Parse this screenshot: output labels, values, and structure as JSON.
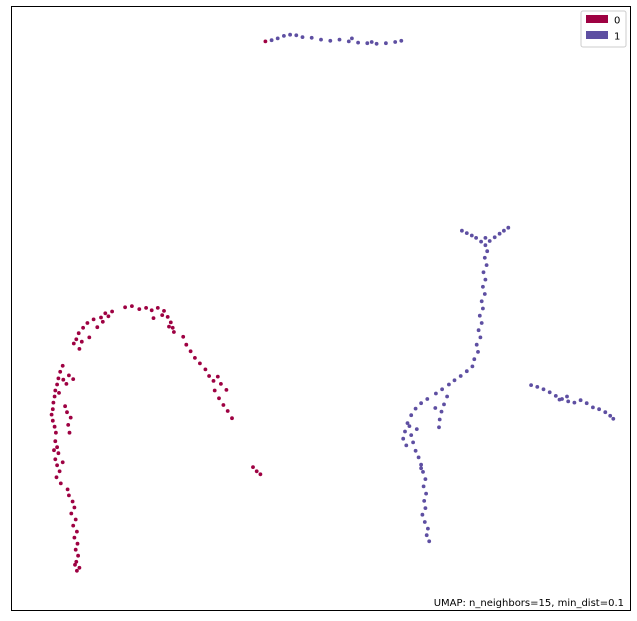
{
  "chart_data": {
    "type": "scatter",
    "title": "",
    "xlabel": "",
    "ylabel": "",
    "grid": false,
    "axes_ticks": false,
    "xlim": [
      0,
      100
    ],
    "ylim": [
      0,
      100
    ],
    "legend_position": "top-right",
    "annotation": "UMAP: n_neighbors=15, min_dist=0.1",
    "series": [
      {
        "name": "0",
        "color": "#9e0142",
        "points": [
          [
            41.0,
            94.3
          ],
          [
            18.3,
            50.2
          ],
          [
            19.4,
            50.4
          ],
          [
            20.6,
            49.9
          ],
          [
            21.7,
            50.1
          ],
          [
            22.6,
            49.7
          ],
          [
            23.6,
            50.1
          ],
          [
            24.6,
            49.6
          ],
          [
            25.2,
            48.6
          ],
          [
            24.3,
            48.9
          ],
          [
            22.9,
            48.4
          ],
          [
            25.7,
            47.7
          ],
          [
            26.0,
            46.8
          ],
          [
            25.4,
            47.0
          ],
          [
            26.2,
            46.1
          ],
          [
            16.2,
            49.5
          ],
          [
            15.1,
            49.2
          ],
          [
            14.4,
            48.5
          ],
          [
            13.2,
            48.2
          ],
          [
            12.2,
            47.6
          ],
          [
            11.5,
            46.8
          ],
          [
            10.8,
            45.9
          ],
          [
            10.4,
            44.9
          ],
          [
            10.0,
            44.2
          ],
          [
            11.3,
            44.5
          ],
          [
            12.5,
            45.2
          ],
          [
            10.9,
            43.3
          ],
          [
            13.8,
            46.9
          ],
          [
            14.7,
            47.8
          ],
          [
            15.6,
            48.7
          ],
          [
            8.2,
            40.5
          ],
          [
            7.8,
            39.5
          ],
          [
            7.5,
            38.4
          ],
          [
            7.3,
            37.4
          ],
          [
            7.0,
            36.4
          ],
          [
            6.9,
            35.4
          ],
          [
            6.7,
            34.4
          ],
          [
            6.6,
            33.3
          ],
          [
            6.4,
            32.4
          ],
          [
            6.6,
            31.4
          ],
          [
            6.9,
            30.4
          ],
          [
            7.1,
            29.4
          ],
          [
            7.6,
            36.0
          ],
          [
            8.3,
            38.2
          ],
          [
            9.2,
            38.9
          ],
          [
            9.9,
            38.3
          ],
          [
            8.8,
            37.5
          ],
          [
            9.5,
            31.9
          ],
          [
            9.1,
            30.7
          ],
          [
            9.3,
            29.4
          ],
          [
            8.6,
            33.8
          ],
          [
            8.9,
            32.8
          ],
          [
            7.0,
            28.0
          ],
          [
            7.3,
            27.0
          ],
          [
            7.5,
            26.0
          ],
          [
            7.0,
            25.0
          ],
          [
            7.3,
            24.0
          ],
          [
            7.7,
            23.0
          ],
          [
            7.2,
            22.0
          ],
          [
            7.9,
            21.0
          ],
          [
            8.2,
            24.5
          ],
          [
            6.8,
            26.5
          ],
          [
            9.0,
            20.0
          ],
          [
            9.2,
            19.0
          ],
          [
            9.8,
            18.0
          ],
          [
            10.1,
            17.0
          ],
          [
            9.6,
            16.0
          ],
          [
            10.3,
            15.0
          ],
          [
            9.9,
            14.0
          ],
          [
            10.5,
            13.0
          ],
          [
            10.1,
            12.0
          ],
          [
            10.6,
            11.0
          ],
          [
            10.3,
            10.0
          ],
          [
            10.7,
            9.0
          ],
          [
            10.4,
            8.0
          ],
          [
            10.9,
            7.0
          ],
          [
            10.5,
            6.5
          ],
          [
            10.2,
            7.5
          ],
          [
            27.7,
            45.3
          ],
          [
            28.2,
            44.0
          ],
          [
            28.9,
            42.9
          ],
          [
            29.6,
            41.8
          ],
          [
            30.4,
            40.9
          ],
          [
            31.3,
            39.9
          ],
          [
            31.9,
            38.8
          ],
          [
            32.6,
            38.0
          ],
          [
            33.3,
            38.7
          ],
          [
            33.8,
            37.5
          ],
          [
            32.8,
            36.4
          ],
          [
            33.5,
            35.1
          ],
          [
            34.2,
            34.0
          ],
          [
            34.9,
            33.0
          ],
          [
            35.6,
            31.8
          ],
          [
            34.7,
            36.5
          ],
          [
            39.0,
            23.7
          ],
          [
            39.6,
            23.0
          ],
          [
            40.2,
            22.5
          ]
        ]
      },
      {
        "name": "1",
        "color": "#5e4fa2",
        "points": [
          [
            42.0,
            94.5
          ],
          [
            43.0,
            94.8
          ],
          [
            44.0,
            95.2
          ],
          [
            45.0,
            95.4
          ],
          [
            46.0,
            95.3
          ],
          [
            47.0,
            95.0
          ],
          [
            48.5,
            94.9
          ],
          [
            50.0,
            94.6
          ],
          [
            51.5,
            94.4
          ],
          [
            53.0,
            94.6
          ],
          [
            54.5,
            94.3
          ],
          [
            56.0,
            94.1
          ],
          [
            57.5,
            94.0
          ],
          [
            59.0,
            93.9
          ],
          [
            60.5,
            94.0
          ],
          [
            62.0,
            94.2
          ],
          [
            63.0,
            94.4
          ],
          [
            55.0,
            94.8
          ],
          [
            58.2,
            94.2
          ],
          [
            72.8,
            62.9
          ],
          [
            73.6,
            62.5
          ],
          [
            74.4,
            62.1
          ],
          [
            75.1,
            61.7
          ],
          [
            75.9,
            61.1
          ],
          [
            76.6,
            61.7
          ],
          [
            77.3,
            61.2
          ],
          [
            78.1,
            61.8
          ],
          [
            78.9,
            62.4
          ],
          [
            79.6,
            62.9
          ],
          [
            80.3,
            63.4
          ],
          [
            76.6,
            60.5
          ],
          [
            76.9,
            59.5
          ],
          [
            76.5,
            58.4
          ],
          [
            76.8,
            57.2
          ],
          [
            76.3,
            56.0
          ],
          [
            76.6,
            54.8
          ],
          [
            76.2,
            53.6
          ],
          [
            76.5,
            52.4
          ],
          [
            76.0,
            51.2
          ],
          [
            76.2,
            50.0
          ],
          [
            75.7,
            48.8
          ],
          [
            76.0,
            47.6
          ],
          [
            75.5,
            46.4
          ],
          [
            75.8,
            45.2
          ],
          [
            75.2,
            44.0
          ],
          [
            75.4,
            42.8
          ],
          [
            74.8,
            41.6
          ],
          [
            74.5,
            40.4
          ],
          [
            73.6,
            39.6
          ],
          [
            72.6,
            38.8
          ],
          [
            71.6,
            38.1
          ],
          [
            70.7,
            37.4
          ],
          [
            69.6,
            36.6
          ],
          [
            68.6,
            35.9
          ],
          [
            70.4,
            35.4
          ],
          [
            69.9,
            34.1
          ],
          [
            69.5,
            32.9
          ],
          [
            69.2,
            31.6
          ],
          [
            68.5,
            33.5
          ],
          [
            69.1,
            30.3
          ],
          [
            67.2,
            35.0
          ],
          [
            66.2,
            34.3
          ],
          [
            65.3,
            33.4
          ],
          [
            64.6,
            32.3
          ],
          [
            64.0,
            31.0
          ],
          [
            63.6,
            29.6
          ],
          [
            63.3,
            28.4
          ],
          [
            63.8,
            27.3
          ],
          [
            64.6,
            29.0
          ],
          [
            64.9,
            27.8
          ],
          [
            65.3,
            26.4
          ],
          [
            65.8,
            25.3
          ],
          [
            66.2,
            24.1
          ],
          [
            66.5,
            22.9
          ],
          [
            66.9,
            21.7
          ],
          [
            66.6,
            20.5
          ],
          [
            67.0,
            19.3
          ],
          [
            66.7,
            18.1
          ],
          [
            66.9,
            16.9
          ],
          [
            66.4,
            15.8
          ],
          [
            66.8,
            14.6
          ],
          [
            67.3,
            13.5
          ],
          [
            67.1,
            12.4
          ],
          [
            67.5,
            11.4
          ],
          [
            66.2,
            23.5
          ],
          [
            65.5,
            30.0
          ],
          [
            64.3,
            30.5
          ],
          [
            84.0,
            37.3
          ],
          [
            85.0,
            37.0
          ],
          [
            86.0,
            36.6
          ],
          [
            87.0,
            36.1
          ],
          [
            88.0,
            35.5
          ],
          [
            89.0,
            35.0
          ],
          [
            90.0,
            34.6
          ],
          [
            91.0,
            34.4
          ],
          [
            92.0,
            34.8
          ],
          [
            93.0,
            34.3
          ],
          [
            94.0,
            33.6
          ],
          [
            95.0,
            33.3
          ],
          [
            96.0,
            32.8
          ],
          [
            96.8,
            32.2
          ],
          [
            97.3,
            31.7
          ],
          [
            88.6,
            34.9
          ],
          [
            89.8,
            35.4
          ]
        ]
      }
    ]
  }
}
